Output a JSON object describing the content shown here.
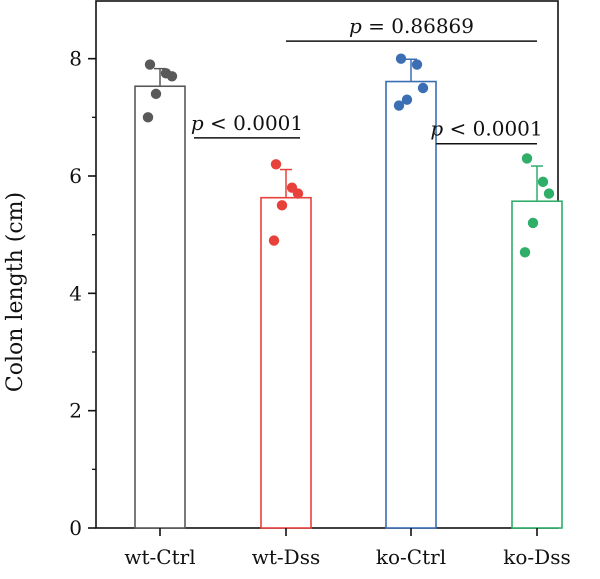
{
  "chart_data": {
    "type": "bar",
    "categories": [
      "wt-Ctrl",
      "wt-Dss",
      "ko-Ctrl",
      "ko-Dss"
    ],
    "values": [
      7.53,
      5.63,
      7.61,
      5.57
    ],
    "errors": [
      0.3,
      0.48,
      0.38,
      0.6
    ],
    "points": [
      [
        7.9,
        7.75,
        7.7,
        7.4,
        7.0
      ],
      [
        6.2,
        5.8,
        5.7,
        5.5,
        4.9
      ],
      [
        8.0,
        7.9,
        7.5,
        7.3,
        7.2
      ],
      [
        6.3,
        5.9,
        5.7,
        5.2,
        4.7
      ]
    ],
    "colors": [
      "#595959",
      "#e8413c",
      "#3c6eb4",
      "#2fae6a"
    ],
    "ylabel": "Colon length (cm)",
    "xlabel": "",
    "ylim": [
      0,
      9
    ],
    "yticks": [
      0,
      2,
      4,
      6,
      8
    ],
    "grid": false,
    "annotations": [
      {
        "from": 0,
        "to": 1,
        "y": 6.65,
        "prefix": "p",
        "text": " < 0.0001"
      },
      {
        "from": 1,
        "to": 3,
        "y": 8.3,
        "prefix": "p",
        "text": " = 0.86869"
      },
      {
        "from": 2,
        "to": 3,
        "y": 6.55,
        "prefix": "p",
        "text": " < 0.0001"
      }
    ]
  }
}
